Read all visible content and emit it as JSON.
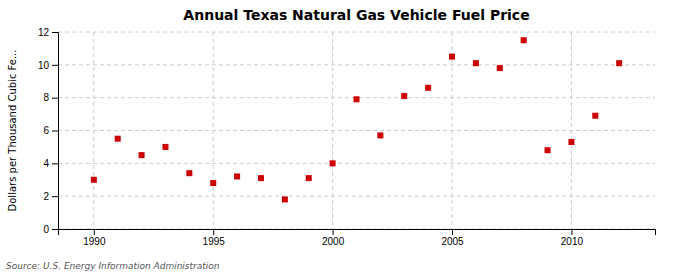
{
  "chart_data": {
    "type": "scatter",
    "title": "Annual Texas Natural Gas Vehicle Fuel Price",
    "ylabel": "Dollars per Thousand Cubic Fe...",
    "source": "Source: U.S. Energy Information Administration",
    "x": [
      1990,
      1991,
      1992,
      1993,
      1994,
      1995,
      1996,
      1997,
      1998,
      1999,
      2000,
      2001,
      2002,
      2003,
      2004,
      2005,
      2006,
      2007,
      2008,
      2009,
      2010,
      2011,
      2012
    ],
    "values": [
      3.0,
      5.5,
      4.5,
      5.0,
      3.4,
      2.8,
      3.2,
      3.1,
      1.8,
      3.1,
      4.0,
      7.9,
      5.7,
      8.1,
      8.6,
      10.5,
      10.1,
      9.8,
      11.5,
      4.8,
      5.3,
      6.9,
      10.1
    ],
    "color": "#cc0000",
    "marker": "square",
    "xlim": [
      1988.5,
      2013.5
    ],
    "ylim": [
      0,
      12
    ],
    "xticks": [
      1990,
      1995,
      2000,
      2005,
      2010
    ],
    "yticks": [
      0,
      2,
      4,
      6,
      8,
      10,
      12
    ],
    "grid": true
  }
}
